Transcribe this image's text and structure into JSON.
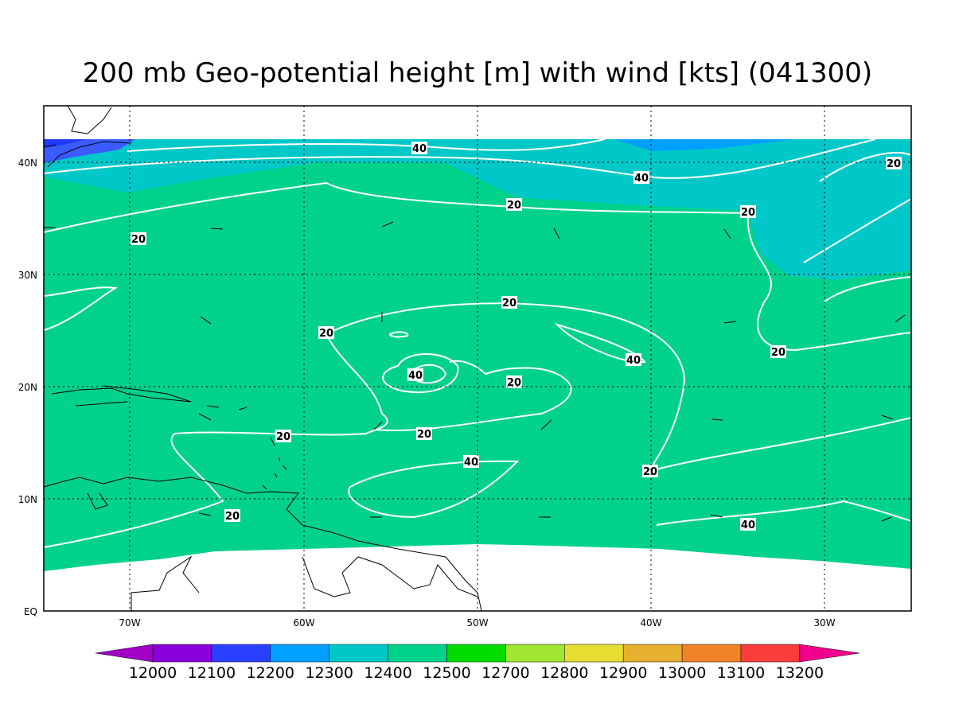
{
  "title": "200 mb Geo-potential height [m] with wind [kts] (041300)",
  "map": {
    "lon_labels": [
      "70W",
      "60W",
      "50W",
      "40W",
      "30W"
    ],
    "lat_labels": [
      "EQ",
      "10N",
      "20N",
      "30N",
      "40N"
    ],
    "contour_labels": [
      "40",
      "40",
      "20",
      "20",
      "20",
      "20",
      "20",
      "20",
      "40",
      "20",
      "40",
      "20",
      "20",
      "20",
      "40",
      "20",
      "20",
      "40"
    ]
  },
  "colorbar": {
    "labels": [
      "12000",
      "12100",
      "12200",
      "12300",
      "12400",
      "12500",
      "12700",
      "12800",
      "12900",
      "13000",
      "13100",
      "13200"
    ]
  }
}
